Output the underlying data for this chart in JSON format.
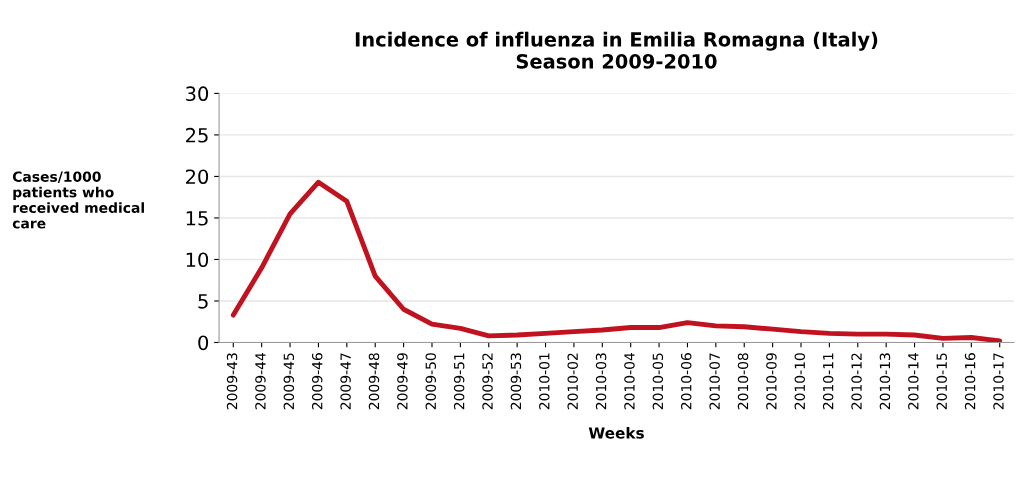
{
  "chart_data": {
    "type": "line",
    "title": "Incidence of influenza in Emilia Romagna (Italy)\nSeason 2009-2010",
    "xlabel": "Weeks",
    "ylabel": "Cases/1000\npatients who\nreceived medical\ncare",
    "categories": [
      "2009-43",
      "2009-44",
      "2009-45",
      "2009-46",
      "2009-47",
      "2009-48",
      "2009-49",
      "2009-50",
      "2009-51",
      "2009-52",
      "2009-53",
      "2010-01",
      "2010-02",
      "2010-03",
      "2010-04",
      "2010-05",
      "2010-06",
      "2010-07",
      "2010-08",
      "2010-09",
      "2010-10",
      "2010-11",
      "2010-12",
      "2010-13",
      "2010-14",
      "2010-15",
      "2010-16",
      "2010-17"
    ],
    "series": [
      {
        "color": "#c0121f",
        "values": [
          3.3,
          9,
          15.5,
          19.3,
          17,
          8,
          4,
          2.2,
          1.7,
          0.8,
          0.9,
          1.1,
          1.3,
          1.5,
          1.8,
          1.8,
          2.4,
          2.0,
          1.9,
          1.6,
          1.3,
          1.1,
          1.0,
          1.0,
          0.9,
          0.5,
          0.6,
          0.2
        ]
      }
    ],
    "ylim": [
      0,
      30
    ],
    "yticks": [
      0,
      5,
      10,
      15,
      20,
      25,
      30
    ],
    "grid": "y",
    "marker": "none",
    "line_style": "solid"
  }
}
